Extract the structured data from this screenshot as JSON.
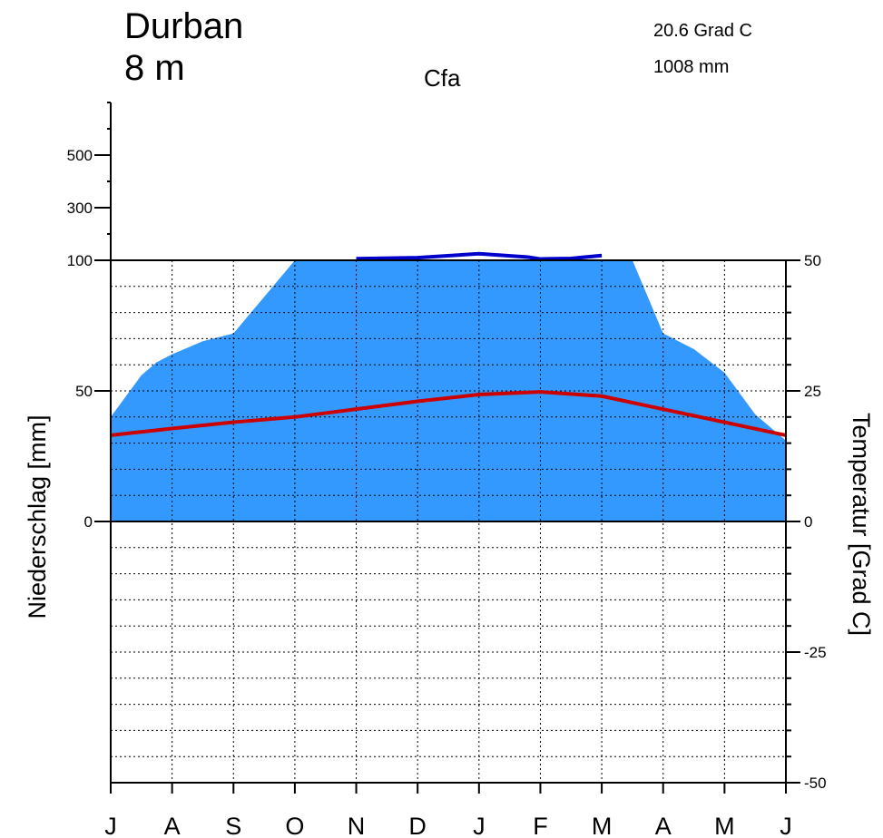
{
  "header": {
    "station": "Durban",
    "elevation": "8 m",
    "climate_class": "Cfa",
    "mean_temperature": "20.6 Grad C",
    "annual_precipitation": "1008 mm"
  },
  "chart_data": {
    "type": "area",
    "title": "Durban",
    "categories": [
      "J",
      "A",
      "S",
      "O",
      "N",
      "D",
      "J",
      "F",
      "M",
      "A",
      "M",
      "J"
    ],
    "x": [
      0,
      1,
      2,
      3,
      4,
      5,
      6,
      7,
      8,
      9,
      10,
      11
    ],
    "precipitation_scale_note": "linear 0-100 mm, compressed above 100 mm",
    "precipitation": {
      "name": "Niederschlag",
      "unit": "mm",
      "axis_label": "Niederschlag [mm]",
      "x": [
        0,
        0.25,
        0.5,
        0.75,
        1,
        1.5,
        2,
        2.5,
        3,
        4,
        5,
        6,
        6.8,
        7,
        7.5,
        8,
        8.5,
        9,
        9.5,
        10,
        10.5,
        11
      ],
      "values": [
        40,
        48,
        56,
        61,
        64,
        69,
        72,
        86,
        100,
        106,
        110,
        125,
        112,
        105,
        107,
        118,
        100,
        72,
        66,
        57,
        41,
        31
      ],
      "color": "#3399ff",
      "excess_color": "#0000cc"
    },
    "temperature": {
      "name": "Temperatur",
      "unit": "Grad C",
      "axis_label": "Temperatur [Grad C]",
      "values": [
        16.5,
        17.8,
        19.0,
        20.0,
        21.5,
        23.0,
        24.3,
        24.8,
        24.0,
        21.5,
        19.0,
        16.5
      ],
      "color": "#cc0000"
    },
    "left_axis_ticks": [
      {
        "value": 500,
        "label": "500"
      },
      {
        "value": 300,
        "label": "300"
      },
      {
        "value": 100,
        "label": "100"
      },
      {
        "value": 50,
        "label": "50"
      },
      {
        "value": 0,
        "label": "0"
      }
    ],
    "right_axis_ticks": [
      {
        "value": 50,
        "label": "50"
      },
      {
        "value": 25,
        "label": "25"
      },
      {
        "value": 0,
        "label": "0"
      },
      {
        "value": -25,
        "label": "-25"
      },
      {
        "value": -50,
        "label": "-50"
      }
    ],
    "temperature_range": [
      -50,
      50
    ],
    "grid": true
  }
}
